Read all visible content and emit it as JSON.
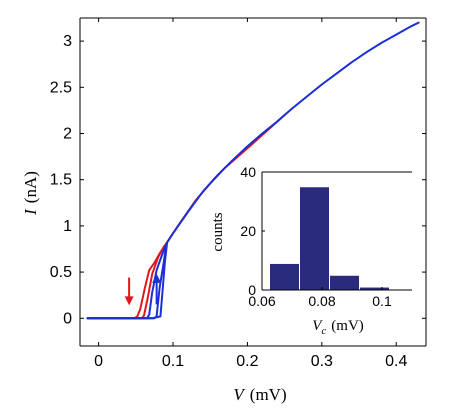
{
  "chart_data": [
    {
      "type": "line",
      "xlabel_symbol": "V",
      "xlabel_unit": "(mV)",
      "ylabel_symbol": "I",
      "ylabel_unit": "(nA)",
      "xlim": [
        -0.025,
        0.44
      ],
      "ylim": [
        -0.3,
        3.25
      ],
      "xticks": [
        0,
        0.1,
        0.2,
        0.3,
        0.4
      ],
      "xtick_labels": [
        "0",
        "0.1",
        "0.2",
        "0.3",
        "0.4"
      ],
      "yticks": [
        0,
        0.5,
        1,
        1.5,
        2,
        2.5,
        3
      ],
      "ytick_labels": [
        "0",
        "0.5",
        "1",
        "1.5",
        "2",
        "2.5",
        "3"
      ],
      "grid": false,
      "series": [
        {
          "color": "#e0181e",
          "x": [
            -0.015,
            0.048,
            0.052,
            0.056,
            0.062,
            0.068,
            0.075,
            0.082,
            0.09
          ],
          "y": [
            0,
            0,
            0.02,
            0.1,
            0.32,
            0.52,
            0.6,
            0.7,
            0.8
          ]
        },
        {
          "color": "#e0181e",
          "x": [
            -0.015,
            0.058,
            0.061,
            0.066,
            0.072,
            0.08,
            0.088
          ],
          "y": [
            0,
            0,
            0.03,
            0.22,
            0.48,
            0.66,
            0.78
          ]
        },
        {
          "color": "#e0181e",
          "x": [
            0.09,
            0.11,
            0.13,
            0.15,
            0.17,
            0.2,
            0.25
          ],
          "y": [
            0.8,
            1.04,
            1.27,
            1.46,
            1.63,
            1.84,
            2.2
          ]
        },
        {
          "color": "#1a2fd6",
          "x": [
            -0.015,
            0.065,
            0.068,
            0.072,
            0.078,
            0.085,
            0.09
          ],
          "y": [
            0,
            0,
            0.04,
            0.28,
            0.52,
            0.68,
            0.79
          ]
        },
        {
          "color": "#1a2fd6",
          "x": [
            -0.015,
            0.075,
            0.078,
            0.082,
            0.088,
            0.091
          ],
          "y": [
            0,
            0,
            0.02,
            0.33,
            0.63,
            0.8
          ]
        },
        {
          "color": "#1a2fd6",
          "x": [
            -0.015,
            0.072,
            0.083,
            0.086,
            0.089,
            0.092
          ],
          "y": [
            0,
            0,
            0.02,
            0.3,
            0.6,
            0.82
          ]
        },
        {
          "color": "#1a2fd6",
          "x": [
            0.092,
            0.1,
            0.12,
            0.14,
            0.16,
            0.18,
            0.2,
            0.22,
            0.24,
            0.26,
            0.28,
            0.3,
            0.32,
            0.34,
            0.36,
            0.38,
            0.4,
            0.42,
            0.43
          ],
          "y": [
            0.82,
            0.92,
            1.15,
            1.37,
            1.55,
            1.71,
            1.86,
            2.0,
            2.13,
            2.27,
            2.4,
            2.53,
            2.65,
            2.77,
            2.88,
            2.98,
            3.07,
            3.16,
            3.2
          ]
        }
      ],
      "arrows": [
        {
          "color": "#e0181e",
          "x": 0.041,
          "y_from": 0.44,
          "y_to": 0.14
        },
        {
          "color": "#1a2fd6",
          "x": 0.078,
          "y_from": 0.15,
          "y_to": 0.48
        }
      ]
    },
    {
      "type": "bar",
      "histogram": true,
      "xlabel_symbol": "V",
      "xlabel_subscript": "c",
      "xlabel_unit": "(mV)",
      "ylabel": "counts",
      "xlim": [
        0.06,
        0.11
      ],
      "ylim": [
        0,
        40
      ],
      "xticks": [
        0.06,
        0.08,
        0.1
      ],
      "xtick_labels": [
        "0.06",
        "0.08",
        "0.1"
      ],
      "yticks": [
        0,
        20,
        40
      ],
      "ytick_labels": [
        "0",
        "20",
        "40"
      ],
      "bar_color": "#2b2b7e",
      "bins": [
        {
          "x0": 0.0625,
          "x1": 0.0725,
          "value": 9
        },
        {
          "x0": 0.0725,
          "x1": 0.0825,
          "value": 35
        },
        {
          "x0": 0.0825,
          "x1": 0.0925,
          "value": 5
        },
        {
          "x0": 0.0925,
          "x1": 0.1025,
          "value": 1
        }
      ]
    }
  ]
}
